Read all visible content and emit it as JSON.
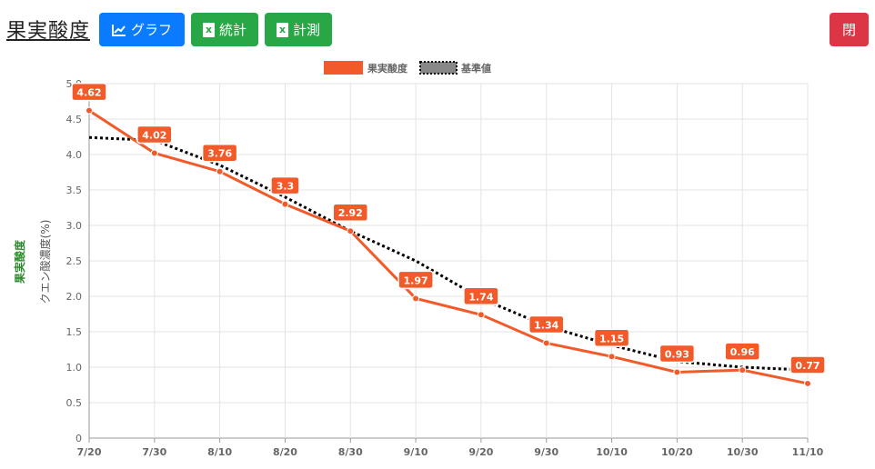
{
  "header": {
    "title": "果実酸度",
    "graph_label": "グラフ",
    "stats_label": "統計",
    "measure_label": "計測",
    "close_label": "閉"
  },
  "icons": {
    "graph": "chart-line-icon",
    "stats": "excel-file-icon",
    "measure": "excel-file-icon"
  },
  "colors": {
    "primary": "#0a7bff",
    "success": "#27a745",
    "danger": "#dc3545",
    "series_main": "#f25a2a",
    "series_ref": "#000000"
  },
  "side_label": "果実酸度",
  "chart_data": {
    "type": "line",
    "xlabel": "",
    "ylabel": "クエン酸濃度(%)",
    "ylim": [
      0,
      5.0
    ],
    "yticks": [
      "0",
      "0.5",
      "1.0",
      "1.5",
      "2.0",
      "2.5",
      "3.0",
      "3.5",
      "4.0",
      "4.5",
      "5.0"
    ],
    "categories": [
      "7/20",
      "7/30",
      "8/10",
      "8/20",
      "8/30",
      "9/10",
      "9/20",
      "9/30",
      "10/10",
      "10/20",
      "10/30",
      "11/10"
    ],
    "grid": true,
    "legend": "top-center",
    "series": [
      {
        "name": "果実酸度",
        "style": "solid",
        "color": "#f25a2a",
        "values": [
          4.62,
          4.02,
          3.76,
          3.3,
          2.92,
          1.97,
          1.74,
          1.34,
          1.15,
          0.93,
          0.96,
          0.77
        ],
        "labels": [
          "4.62",
          "4.02",
          "3.76",
          "3.3",
          "2.92",
          "1.97",
          "1.74",
          "1.34",
          "1.15",
          "0.93",
          "0.96",
          "0.77"
        ]
      },
      {
        "name": "基準値",
        "style": "dotted",
        "color": "#000000",
        "values": [
          4.24,
          4.2,
          3.85,
          3.4,
          2.92,
          2.5,
          1.97,
          1.58,
          1.31,
          1.08,
          1.0,
          0.96
        ]
      }
    ]
  }
}
